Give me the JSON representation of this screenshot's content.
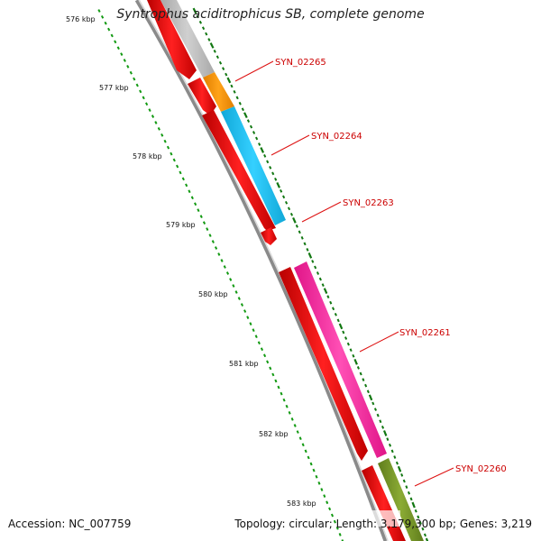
{
  "title": "Syntrophus aciditrophicus SB, complete genome",
  "footer": {
    "accession": "Accession: NC_007759",
    "topology": "Topology: circular; Length: 3,179,300 bp; Genes: 3,219"
  },
  "ruler": {
    "labels": [
      "576 kbp",
      "577 kbp",
      "578 kbp",
      "579 kbp",
      "580 kbp",
      "581 kbp",
      "582 kbp",
      "583 kbp"
    ]
  },
  "genes": [
    {
      "id": "gene-syn-02265",
      "label": "SYN_02265"
    },
    {
      "id": "gene-syn-02264",
      "label": "SYN_02264"
    },
    {
      "id": "gene-syn-02263",
      "label": "SYN_02263"
    },
    {
      "id": "gene-syn-02261",
      "label": "SYN_02261"
    },
    {
      "id": "gene-syn-02260",
      "label": "SYN_02260"
    }
  ],
  "colors": {
    "cds": "#ee1111",
    "label": "#cc0000",
    "backbone": "#999999",
    "ticks_major": "#117711",
    "ticks_minor": "#119911",
    "gene_grey": "#c0c0c0",
    "gene_orange": "#ff9900",
    "gene_blue": "#22c4f2",
    "gene_pink": "#ff2fa5",
    "gene_olive": "#7a9a2a"
  }
}
